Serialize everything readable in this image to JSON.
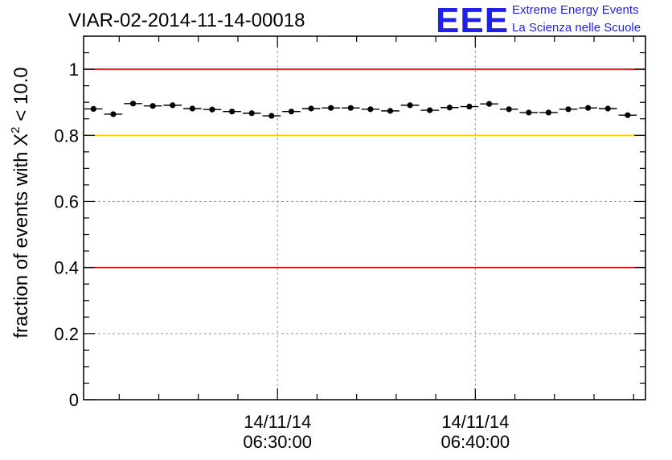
{
  "logo": {
    "letters": "EEE",
    "line1": "Extreme Energy Events",
    "line2": "La Scienza nelle Scuole"
  },
  "colors": {
    "reference_red": "#e00000",
    "reference_yellow": "#ffcc00",
    "grid": "#999999",
    "marker": "#000000",
    "logo_blue": "#1f1fe6"
  },
  "chart_data": {
    "type": "scatter",
    "title": "VIAR-02-2014-11-14-00018",
    "xlabel": "",
    "ylabel": {
      "prefix": "fraction of events with ",
      "chi": "X",
      "superscript": "2",
      "suffix": " < 10.0"
    },
    "ylim": [
      0,
      1.1
    ],
    "xlim_minutes": [
      0,
      28.4
    ],
    "y_ticks": [
      {
        "value": 0,
        "label": "0"
      },
      {
        "value": 0.2,
        "label": "0.2"
      },
      {
        "value": 0.4,
        "label": "0.4"
      },
      {
        "value": 0.6,
        "label": "0.6"
      },
      {
        "value": 0.8,
        "label": "0.8"
      },
      {
        "value": 1.0,
        "label": "1"
      }
    ],
    "x_ticks": [
      {
        "minute": 9.8,
        "date": "14/11/14",
        "time": "06:30:00"
      },
      {
        "minute": 19.8,
        "date": "14/11/14",
        "time": "06:40:00"
      }
    ],
    "reference_lines": [
      {
        "value": 1.0,
        "color": "red"
      },
      {
        "value": 0.8,
        "color": "yellow"
      },
      {
        "value": 0.4,
        "color": "red"
      }
    ],
    "grid": true,
    "bin_width_minutes": 1.0,
    "series": [
      {
        "name": "fraction",
        "x_minutes": [
          0.5,
          1.5,
          2.5,
          3.5,
          4.5,
          5.5,
          6.5,
          7.5,
          8.5,
          9.5,
          10.5,
          11.5,
          12.5,
          13.5,
          14.5,
          15.5,
          16.5,
          17.5,
          18.5,
          19.5,
          20.5,
          21.5,
          22.5,
          23.5,
          24.5,
          25.5,
          26.5,
          27.5
        ],
        "values": [
          0.88,
          0.864,
          0.896,
          0.889,
          0.891,
          0.881,
          0.878,
          0.872,
          0.867,
          0.859,
          0.872,
          0.881,
          0.883,
          0.883,
          0.879,
          0.874,
          0.891,
          0.876,
          0.884,
          0.887,
          0.895,
          0.879,
          0.869,
          0.869,
          0.879,
          0.883,
          0.881,
          0.861
        ]
      }
    ]
  }
}
